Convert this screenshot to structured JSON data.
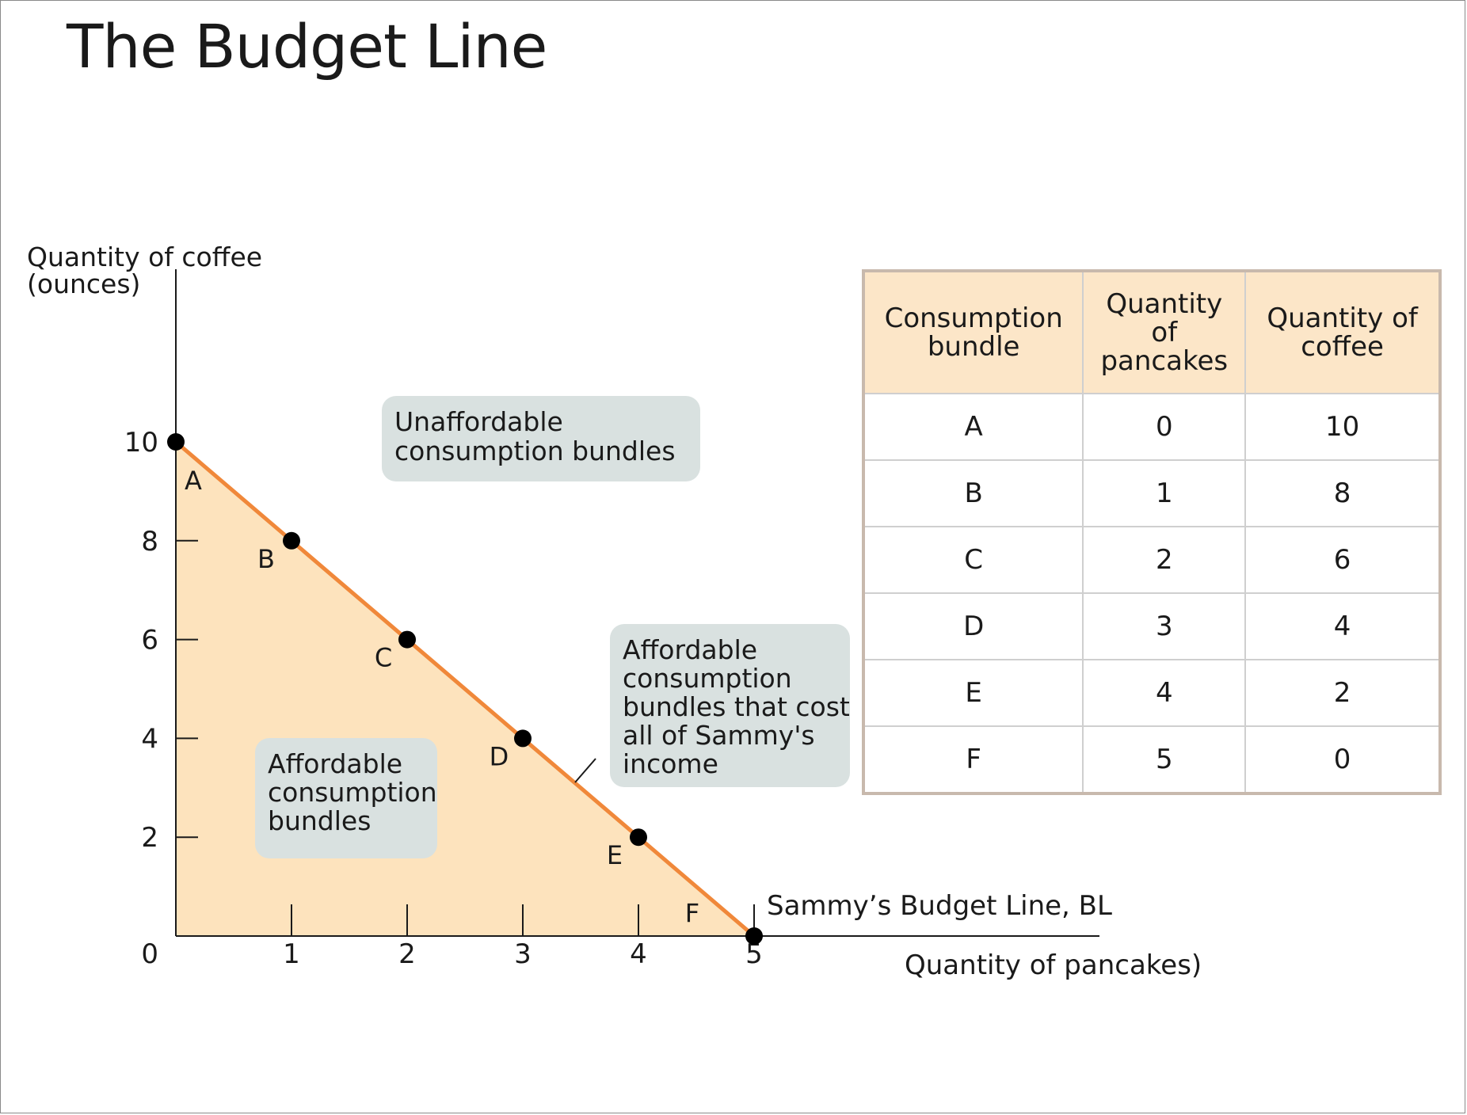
{
  "title": "The Budget Line",
  "chart_data": {
    "type": "line",
    "title": "The Budget Line",
    "xlabel": "Quantity of pancakes)",
    "ylabel_line1": "Quantity of coffee",
    "ylabel_line2": "(ounces)",
    "xlim": [
      0,
      5
    ],
    "ylim": [
      0,
      10
    ],
    "x_ticks": [
      0,
      1,
      2,
      3,
      4,
      5
    ],
    "y_ticks": [
      2,
      4,
      6,
      8,
      10
    ],
    "origin_label": "0",
    "series": [
      {
        "name": "Sammy’s Budget Line, BL",
        "color": "#f0883a",
        "points": [
          {
            "label": "A",
            "x": 0,
            "y": 10
          },
          {
            "label": "B",
            "x": 1,
            "y": 8
          },
          {
            "label": "C",
            "x": 2,
            "y": 6
          },
          {
            "label": "D",
            "x": 3,
            "y": 4
          },
          {
            "label": "E",
            "x": 4,
            "y": 2
          },
          {
            "label": "F",
            "x": 5,
            "y": 0
          }
        ]
      }
    ],
    "affordable_fill_color": "#fde3bd",
    "callout_color": "#d9e1e0",
    "annotations": {
      "unaffordable": [
        "Unaffordable",
        "consumption bundles"
      ],
      "affordable": [
        "Affordable",
        "consumption",
        "bundles"
      ],
      "affordable_on_line": [
        "Affordable",
        "consumption",
        "bundles that cost",
        "all of Sammy's",
        "income"
      ]
    }
  },
  "table": {
    "headers": [
      [
        "Consumption",
        "bundle"
      ],
      [
        "Quantity",
        "of",
        "pancakes"
      ],
      [
        "Quantity of",
        "coffee"
      ]
    ],
    "rows": [
      [
        "A",
        "0",
        "10"
      ],
      [
        "B",
        "1",
        "8"
      ],
      [
        "C",
        "2",
        "6"
      ],
      [
        "D",
        "3",
        "4"
      ],
      [
        "E",
        "4",
        "2"
      ],
      [
        "F",
        "5",
        "0"
      ]
    ]
  }
}
